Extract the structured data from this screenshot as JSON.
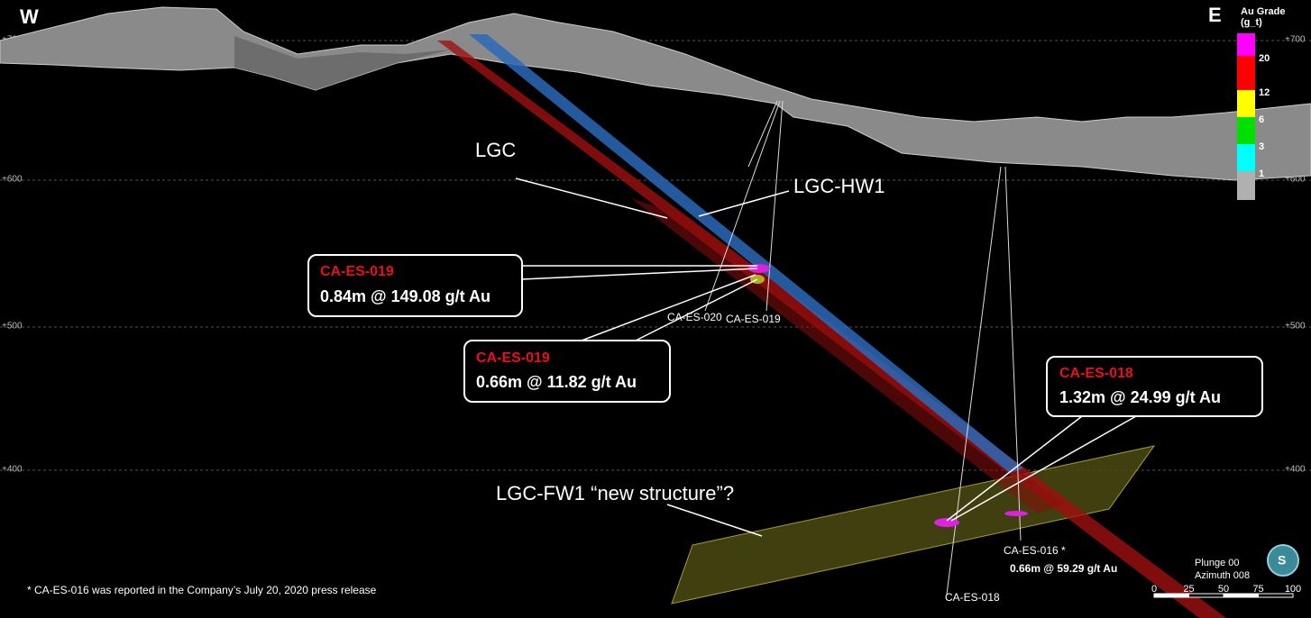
{
  "header": {
    "west": "W",
    "east": "E"
  },
  "legend": {
    "title": "Au Grade",
    "unit": "(g_t)",
    "items": [
      {
        "label": "20",
        "color": "#ff00ff"
      },
      {
        "label": "12",
        "color": "#ff0000"
      },
      {
        "label": "6",
        "color": "#ffff00"
      },
      {
        "label": "3",
        "color": "#00e000"
      },
      {
        "label": "1",
        "color": "#00ffff"
      }
    ]
  },
  "elevations": [
    "+700",
    "+600",
    "+500",
    "+400"
  ],
  "structures": {
    "lgc": "LGC",
    "lgc_hw1": "LGC-HW1",
    "lgc_fw1": "LGC-FW1 “new structure”?"
  },
  "callouts": [
    {
      "hole": "CA-ES-019",
      "intercept": "0.84m @ 149.08 g/t Au"
    },
    {
      "hole": "CA-ES-019",
      "intercept": "0.66m @ 11.82 g/t Au"
    },
    {
      "hole": "CA-ES-018",
      "intercept": "1.32m @ 24.99 g/t Au"
    }
  ],
  "drill_labels": [
    "CA-ES-020",
    "CA-ES-019",
    "CA-ES-016 *",
    "CA-ES-018"
  ],
  "intercept_note": "0.66m @ 59.29 g/t Au",
  "footnote": "* CA-ES-016 was reported in the Company’s July 20, 2020 press release",
  "view": {
    "plunge": "Plunge 00",
    "azimuth": "Azimuth 008"
  },
  "scale": [
    "0",
    "25",
    "50",
    "75",
    "100"
  ]
}
